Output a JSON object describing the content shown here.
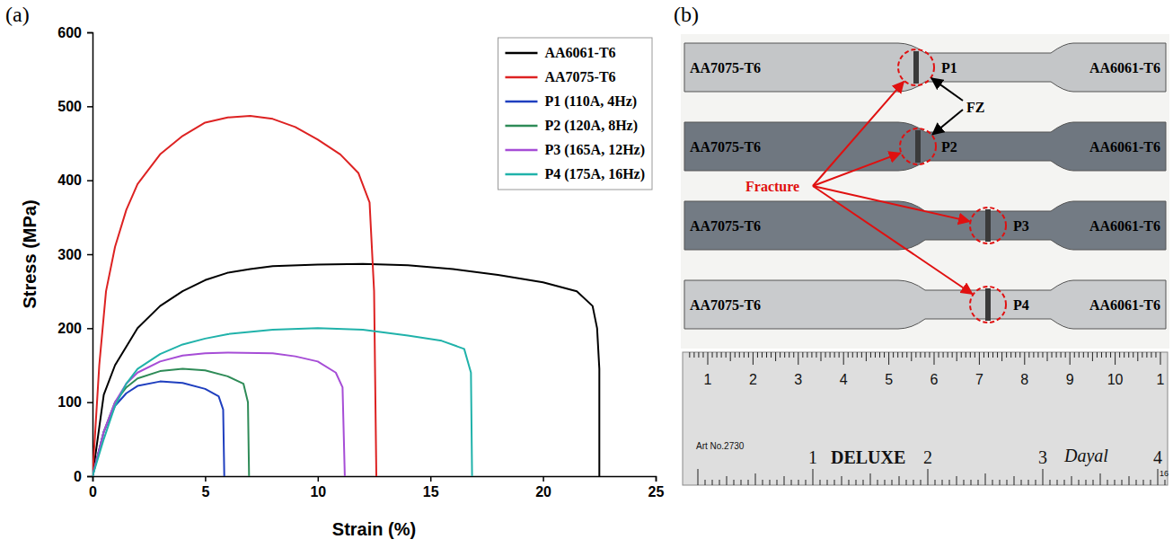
{
  "chart_data": {
    "type": "line",
    "panel_label": "(a)",
    "xlabel": "Strain (%)",
    "ylabel": "Stress (MPa)",
    "xlim": [
      0,
      25
    ],
    "ylim": [
      0,
      600
    ],
    "xticks": [
      0,
      5,
      10,
      15,
      20,
      25
    ],
    "yticks": [
      0,
      100,
      200,
      300,
      400,
      500,
      600
    ],
    "legend": "upper right",
    "series": [
      {
        "name": "AA6061-T6",
        "color": "#000000",
        "x": [
          0,
          0.5,
          1,
          2,
          3,
          4,
          5,
          6,
          7,
          8,
          10,
          12,
          14,
          16,
          18,
          20,
          21.5,
          22.2,
          22.4,
          22.5,
          22.5
        ],
        "values": [
          0,
          110,
          150,
          200,
          230,
          250,
          265,
          275,
          280,
          284,
          286,
          287,
          285,
          280,
          272,
          262,
          250,
          230,
          200,
          145,
          0
        ]
      },
      {
        "name": "AA7075-T6",
        "color": "#dd2222",
        "x": [
          0,
          0.3,
          0.6,
          1,
          1.5,
          2,
          3,
          4,
          5,
          6,
          7,
          8,
          9,
          10,
          11,
          11.8,
          12.3,
          12.5,
          12.6
        ],
        "values": [
          0,
          150,
          250,
          310,
          360,
          395,
          435,
          460,
          478,
          485,
          487,
          483,
          472,
          455,
          435,
          410,
          370,
          250,
          0
        ]
      },
      {
        "name": "P1 (110A, 4Hz)",
        "color": "#1f3fbf",
        "x": [
          0,
          0.5,
          1,
          1.5,
          2,
          3,
          4,
          5,
          5.6,
          5.8,
          5.85
        ],
        "values": [
          0,
          60,
          95,
          112,
          122,
          128,
          126,
          118,
          108,
          90,
          0
        ]
      },
      {
        "name": "P2 (120A, 8Hz)",
        "color": "#2e8b57",
        "x": [
          0,
          0.5,
          1,
          1.5,
          2,
          3,
          4,
          5,
          6,
          6.7,
          6.9,
          6.95
        ],
        "values": [
          0,
          60,
          100,
          120,
          132,
          142,
          145,
          143,
          135,
          125,
          100,
          0
        ]
      },
      {
        "name": "P3 (165A, 12Hz)",
        "color": "#a64dd6",
        "x": [
          0,
          0.5,
          1,
          1.5,
          2,
          3,
          4,
          5,
          6,
          8,
          9,
          10,
          10.8,
          11.1,
          11.2
        ],
        "values": [
          0,
          60,
          100,
          125,
          140,
          155,
          163,
          166,
          167,
          166,
          162,
          155,
          140,
          120,
          0
        ]
      },
      {
        "name": "P4 (175A, 16Hz)",
        "color": "#20b2aa",
        "x": [
          0,
          0.5,
          1,
          1.5,
          2,
          3,
          4,
          5,
          6,
          8,
          10,
          12,
          14,
          15.5,
          16.5,
          16.8,
          16.85
        ],
        "values": [
          0,
          50,
          95,
          125,
          145,
          165,
          178,
          186,
          192,
          198,
          200,
          198,
          190,
          183,
          172,
          140,
          0
        ]
      }
    ]
  },
  "photo": {
    "panel_label": "(b)",
    "specimens": [
      {
        "left": "AA7075-T6",
        "label": "P1",
        "right": "AA6061-T6"
      },
      {
        "left": "AA7075-T6",
        "label": "P2",
        "right": "AA6061-T6"
      },
      {
        "left": "AA7075-T6",
        "label": "P3",
        "right": "AA6061-T6"
      },
      {
        "left": "AA7075-T6",
        "label": "P4",
        "right": "AA6061-T6"
      }
    ],
    "fz_label": "FZ",
    "fracture_label": "Fracture",
    "ruler": {
      "cm_labels": [
        "1",
        "2",
        "3",
        "4",
        "5",
        "6",
        "7",
        "8",
        "9",
        "10",
        "1"
      ],
      "inch_labels": [
        "1",
        "2",
        "3",
        "4"
      ],
      "article": "Art No.2730",
      "brand": "DELUXE",
      "maker": "Dayal",
      "scale": "16"
    }
  }
}
